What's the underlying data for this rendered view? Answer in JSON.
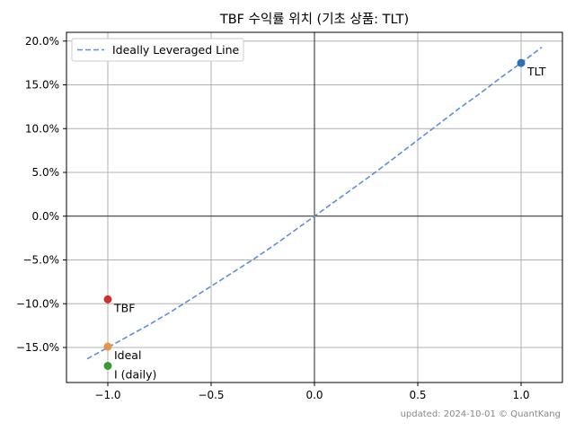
{
  "chart_data": {
    "type": "scatter",
    "title": "TBF 수익률 위치 (기초 상품: TLT)",
    "xlabel": "",
    "ylabel": "",
    "xlim": [
      -1.2,
      1.2
    ],
    "ylim": [
      -19.0,
      21.0
    ],
    "x_ticks": [
      -1.0,
      -0.5,
      0.0,
      0.5,
      1.0
    ],
    "x_tick_labels": [
      "−1.0",
      "−0.5",
      "0.0",
      "0.5",
      "1.0"
    ],
    "y_ticks": [
      -15,
      -10,
      -5,
      0,
      5,
      10,
      15,
      20
    ],
    "y_tick_labels": [
      "−15.0%",
      "−10.0%",
      "−5.0%",
      "0.0%",
      "5.0%",
      "10.0%",
      "15.0%",
      "20.0%"
    ],
    "grid": true,
    "legend": {
      "placement": "top-left",
      "entries": [
        "Ideally Leveraged Line"
      ]
    },
    "line": {
      "name": "Ideally Leveraged Line",
      "color": "#5b8fdc",
      "style": "dashed",
      "x": [
        -1.1,
        -1.0,
        -0.9,
        -0.8,
        -0.7,
        -0.6,
        -0.5,
        -0.4,
        -0.3,
        -0.2,
        -0.1,
        0.0,
        0.1,
        0.2,
        0.3,
        0.4,
        0.5,
        0.6,
        0.7,
        0.8,
        0.9,
        1.0,
        1.1
      ],
      "y": [
        -16.3,
        -15.0,
        -13.7,
        -12.4,
        -11.0,
        -9.5,
        -8.0,
        -6.5,
        -5.0,
        -3.4,
        -1.7,
        0.0,
        1.7,
        3.4,
        5.1,
        6.9,
        8.7,
        10.5,
        12.3,
        14.0,
        15.8,
        17.5,
        19.3
      ]
    },
    "points": [
      {
        "label": "TLT",
        "x": 1.0,
        "y": 17.5,
        "color": "#2f6fb5"
      },
      {
        "label": "TBF",
        "x": -1.0,
        "y": -9.5,
        "color": "#d03030"
      },
      {
        "label": "Ideal",
        "x": -1.0,
        "y": -14.9,
        "color": "#e8934a"
      },
      {
        "label": "I (daily)",
        "x": -1.0,
        "y": -17.1,
        "color": "#3a9a3a"
      }
    ]
  },
  "footer": "updated: 2024-10-01 © QuantKang"
}
